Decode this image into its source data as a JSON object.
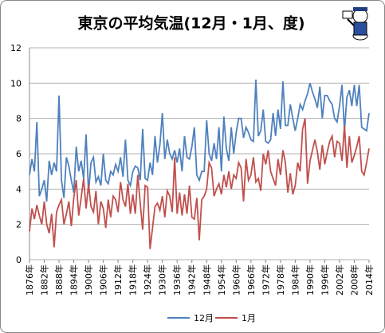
{
  "chart_data": {
    "type": "line",
    "title": "東京の平均気温(12月・1月、度)",
    "x": [
      1876,
      1877,
      1878,
      1879,
      1880,
      1881,
      1882,
      1883,
      1884,
      1885,
      1886,
      1887,
      1888,
      1889,
      1890,
      1891,
      1892,
      1893,
      1894,
      1895,
      1896,
      1897,
      1898,
      1899,
      1900,
      1901,
      1902,
      1903,
      1904,
      1905,
      1906,
      1907,
      1908,
      1909,
      1910,
      1911,
      1912,
      1913,
      1914,
      1915,
      1916,
      1917,
      1918,
      1919,
      1920,
      1921,
      1922,
      1923,
      1924,
      1925,
      1926,
      1927,
      1928,
      1929,
      1930,
      1931,
      1932,
      1933,
      1934,
      1935,
      1936,
      1937,
      1938,
      1939,
      1940,
      1941,
      1942,
      1943,
      1944,
      1945,
      1946,
      1947,
      1948,
      1949,
      1950,
      1951,
      1952,
      1953,
      1954,
      1955,
      1956,
      1957,
      1958,
      1959,
      1960,
      1961,
      1962,
      1963,
      1964,
      1965,
      1966,
      1967,
      1968,
      1969,
      1970,
      1971,
      1972,
      1973,
      1974,
      1975,
      1976,
      1977,
      1978,
      1979,
      1980,
      1981,
      1982,
      1983,
      1984,
      1985,
      1986,
      1987,
      1988,
      1989,
      1990,
      1991,
      1992,
      1993,
      1994,
      1995,
      1996,
      1997,
      1998,
      1999,
      2000,
      2001,
      2002,
      2003,
      2004,
      2005,
      2006,
      2007,
      2008,
      2009,
      2010,
      2011,
      2012,
      2013,
      2014
    ],
    "series": [
      {
        "name": "12月",
        "color": "#4f81bd",
        "values": [
          4.8,
          5.7,
          5.0,
          7.8,
          3.6,
          4.0,
          4.5,
          3.3,
          5.6,
          4.8,
          5.5,
          5.0,
          9.3,
          4.5,
          3.5,
          5.8,
          5.3,
          4.5,
          3.8,
          6.4,
          5.0,
          5.6,
          4.6,
          7.1,
          3.8,
          5.5,
          5.8,
          4.4,
          4.7,
          4.2,
          6.0,
          4.5,
          4.3,
          5.0,
          4.8,
          5.4,
          5.0,
          5.8,
          4.7,
          6.8,
          4.5,
          4.2,
          5.0,
          5.3,
          5.2,
          4.5,
          7.4,
          4.6,
          4.5,
          5.5,
          4.8,
          7.0,
          5.5,
          6.5,
          8.3,
          5.7,
          6.8,
          6.0,
          5.7,
          6.2,
          5.5,
          6.3,
          5.0,
          7.0,
          5.8,
          5.7,
          6.4,
          7.5,
          4.8,
          4.5,
          5.0,
          5.0,
          7.9,
          6.0,
          5.6,
          6.6,
          5.7,
          7.5,
          5.0,
          8.1,
          6.3,
          5.6,
          7.5,
          6.0,
          7.2,
          8.0,
          8.0,
          6.9,
          7.5,
          7.2,
          6.8,
          6.7,
          10.2,
          7.0,
          7.3,
          8.5,
          6.7,
          6.6,
          6.8,
          8.3,
          7.0,
          8.5,
          7.4,
          10.1,
          7.6,
          7.6,
          8.8,
          8.0,
          7.3,
          8.0,
          8.8,
          8.5,
          9.0,
          9.4,
          10.0,
          9.5,
          9.1,
          8.6,
          9.8,
          8.0,
          9.3,
          9.3,
          9.0,
          8.8,
          8.0,
          7.8,
          8.7,
          9.9,
          7.3,
          9.2,
          9.6,
          8.7,
          9.9,
          8.7,
          9.9,
          7.5,
          7.4,
          7.3,
          8.3
        ]
      },
      {
        "name": "1月",
        "color": "#c0504d",
        "values": [
          1.6,
          2.9,
          2.3,
          3.1,
          2.5,
          2.0,
          3.3,
          2.0,
          1.5,
          2.6,
          0.7,
          2.7,
          3.1,
          3.4,
          2.0,
          2.6,
          3.3,
          1.9,
          3.5,
          4.5,
          2.5,
          3.5,
          4.6,
          2.9,
          4.3,
          3.0,
          2.7,
          3.9,
          2.0,
          3.3,
          2.9,
          1.8,
          3.4,
          2.4,
          3.6,
          3.4,
          2.7,
          4.4,
          3.4,
          3.0,
          4.3,
          2.6,
          3.7,
          2.6,
          4.8,
          3.2,
          1.7,
          4.2,
          4.1,
          0.6,
          1.8,
          3.0,
          3.2,
          2.8,
          3.6,
          2.4,
          3.9,
          3.6,
          2.7,
          5.8,
          2.6,
          3.8,
          2.5,
          3.7,
          2.6,
          4.2,
          2.4,
          2.3,
          3.5,
          1.1,
          3.4,
          3.6,
          4.0,
          5.5,
          5.2,
          3.6,
          4.0,
          4.3,
          3.7,
          4.8,
          4.1,
          5.0,
          4.0,
          4.8,
          4.6,
          5.5,
          5.2,
          3.3,
          5.7,
          4.5,
          4.8,
          5.8,
          4.4,
          4.6,
          3.9,
          6.0,
          5.4,
          6.2,
          5.0,
          4.6,
          4.2,
          5.7,
          4.8,
          6.2,
          5.5,
          3.8,
          4.9,
          3.7,
          4.2,
          5.5,
          5.0,
          7.4,
          8.0,
          4.3,
          5.6,
          6.2,
          6.8,
          6.1,
          5.1,
          6.5,
          5.4,
          6.1,
          6.7,
          7.0,
          5.8,
          6.7,
          6.6,
          5.6,
          7.6,
          5.2,
          7.0,
          5.5,
          5.9,
          6.4,
          7.0,
          5.0,
          4.8,
          5.5,
          6.3
        ]
      }
    ],
    "xlim": [
      1876,
      2014
    ],
    "xticks": [
      {
        "value": 1876,
        "label": "1876年"
      },
      {
        "value": 1882,
        "label": "1882年"
      },
      {
        "value": 1888,
        "label": "1888年"
      },
      {
        "value": 1894,
        "label": "1894年"
      },
      {
        "value": 1900,
        "label": "1900年"
      },
      {
        "value": 1906,
        "label": "1906年"
      },
      {
        "value": 1912,
        "label": "1912年"
      },
      {
        "value": 1918,
        "label": "1918年"
      },
      {
        "value": 1924,
        "label": "1924年"
      },
      {
        "value": 1930,
        "label": "1930年"
      },
      {
        "value": 1936,
        "label": "1936年"
      },
      {
        "value": 1942,
        "label": "1942年"
      },
      {
        "value": 1948,
        "label": "1948年"
      },
      {
        "value": 1954,
        "label": "1954年"
      },
      {
        "value": 1960,
        "label": "1960年"
      },
      {
        "value": 1966,
        "label": "1966年"
      },
      {
        "value": 1972,
        "label": "1972年"
      },
      {
        "value": 1978,
        "label": "1978年"
      },
      {
        "value": 1984,
        "label": "1984年"
      },
      {
        "value": 1990,
        "label": "1990年"
      },
      {
        "value": 1996,
        "label": "1996年"
      },
      {
        "value": 2002,
        "label": "2002年"
      },
      {
        "value": 2008,
        "label": "2008年"
      },
      {
        "value": 2014,
        "label": "2014年"
      }
    ],
    "ylim": [
      0,
      12
    ],
    "yticks": [
      0,
      2,
      4,
      6,
      8,
      10,
      12
    ],
    "grid": true,
    "legend": "bottom"
  }
}
